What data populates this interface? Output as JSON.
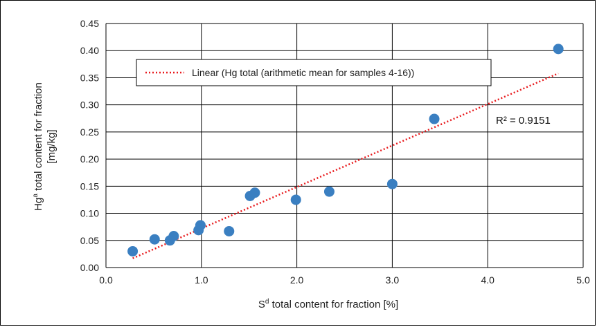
{
  "chart_data": {
    "type": "scatter",
    "title": "",
    "xlabel_base": "S",
    "xlabel_sup": "d",
    "xlabel_rest": " total content for fraction [%]",
    "ylabel_line1_base": "Hg",
    "ylabel_line1_sup": "a",
    "ylabel_line1_rest": " total content for fraction",
    "ylabel_line2": "[mg/kg]",
    "xlim": [
      0.0,
      5.0
    ],
    "ylim": [
      0.0,
      0.45
    ],
    "x_ticks": [
      "0.0",
      "1.0",
      "2.0",
      "3.0",
      "4.0",
      "5.0"
    ],
    "y_ticks": [
      "0.00",
      "0.05",
      "0.10",
      "0.15",
      "0.20",
      "0.25",
      "0.30",
      "0.35",
      "0.40",
      "0.45"
    ],
    "grid": true,
    "legend_position": "top-left",
    "series": [
      {
        "points": [
          {
            "x": 0.28,
            "y": 0.03
          },
          {
            "x": 0.51,
            "y": 0.052
          },
          {
            "x": 0.67,
            "y": 0.05
          },
          {
            "x": 0.71,
            "y": 0.058
          },
          {
            "x": 0.97,
            "y": 0.069
          },
          {
            "x": 0.99,
            "y": 0.078
          },
          {
            "x": 1.29,
            "y": 0.067
          },
          {
            "x": 1.51,
            "y": 0.132
          },
          {
            "x": 1.56,
            "y": 0.138
          },
          {
            "x": 1.99,
            "y": 0.125
          },
          {
            "x": 2.34,
            "y": 0.14
          },
          {
            "x": 3.0,
            "y": 0.154
          },
          {
            "x": 3.44,
            "y": 0.274
          },
          {
            "x": 4.74,
            "y": 0.403
          }
        ],
        "color": "#3a7fc1"
      }
    ],
    "trendline": {
      "name": "Linear (Hg total (arithmetic mean for samples 4-16))",
      "type": "linear",
      "x_range": [
        0.28,
        4.74
      ],
      "y_range": [
        0.017,
        0.358
      ],
      "color": "#e8191c",
      "style": "dotted",
      "r_squared_label": "R² = 0.9151"
    }
  }
}
